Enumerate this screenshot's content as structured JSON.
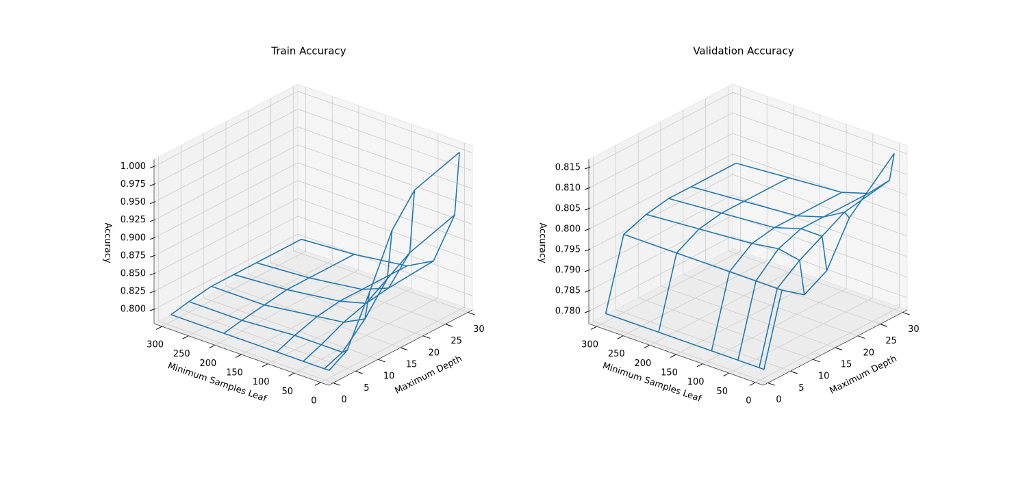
{
  "chart_data": [
    {
      "type": "wireframe",
      "title": "Train Accuracy",
      "xlabel": "Minimum Samples Leaf",
      "ylabel": "Maximum Depth",
      "zlabel": "Accuracy",
      "color": "#1f77b4",
      "x": [
        1,
        10,
        50,
        100,
        200,
        300
      ],
      "y": [
        1,
        5,
        10,
        15,
        20,
        30
      ],
      "z": [
        [
          0.79,
          0.805,
          0.87,
          0.94,
          0.98,
          1.0
        ],
        [
          0.79,
          0.8,
          0.83,
          0.87,
          0.89,
          0.91
        ],
        [
          0.79,
          0.8,
          0.815,
          0.825,
          0.83,
          0.835
        ],
        [
          0.79,
          0.8,
          0.81,
          0.815,
          0.815,
          0.815
        ],
        [
          0.79,
          0.795,
          0.8,
          0.805,
          0.805,
          0.805
        ],
        [
          0.79,
          0.795,
          0.8,
          0.8,
          0.8,
          0.8
        ]
      ],
      "xlim": [
        -15,
        315
      ],
      "ylim": [
        -1,
        31
      ],
      "zlim": [
        0.78,
        1.01
      ],
      "xticks": [
        0,
        50,
        100,
        150,
        200,
        250,
        300
      ],
      "yticks": [
        0,
        5,
        10,
        15,
        20,
        25,
        30
      ],
      "zticks": [
        {
          "value": 0.8,
          "label": "0.800"
        },
        0.825,
        {
          "value": 0.85,
          "label": "0.850"
        },
        0.875,
        {
          "value": 0.9,
          "label": "0.900"
        },
        0.925,
        {
          "value": 0.95,
          "label": "0.950"
        },
        0.975,
        {
          "value": 1.0,
          "label": "1.000"
        }
      ],
      "grid": true
    },
    {
      "type": "wireframe",
      "title": "Validation Accuracy",
      "xlabel": "Minimum Samples Leaf",
      "ylabel": "Maximum Depth",
      "zlabel": "Accuracy",
      "color": "#1f77b4",
      "x": [
        1,
        10,
        50,
        100,
        200,
        300
      ],
      "y": [
        1,
        5,
        10,
        15,
        20,
        30
      ],
      "z": [
        [
          0.779,
          0.796,
          0.792,
          0.795,
          0.805,
          0.815
        ],
        [
          0.779,
          0.796,
          0.8,
          0.803,
          0.806,
          0.808
        ],
        [
          0.779,
          0.796,
          0.801,
          0.803,
          0.803,
          0.803
        ],
        [
          0.779,
          0.796,
          0.8,
          0.801,
          0.801,
          0.801
        ],
        [
          0.779,
          0.796,
          0.799,
          0.8,
          0.8,
          0.8
        ],
        [
          0.779,
          0.796,
          0.798,
          0.799,
          0.799,
          0.799
        ]
      ],
      "xlim": [
        -15,
        315
      ],
      "ylim": [
        -1,
        31
      ],
      "zlim": [
        0.777,
        0.817
      ],
      "xticks": [
        0,
        50,
        100,
        150,
        200,
        250,
        300
      ],
      "yticks": [
        0,
        5,
        10,
        15,
        20,
        25,
        30
      ],
      "zticks": [
        {
          "value": 0.78,
          "label": "0.780"
        },
        0.785,
        {
          "value": 0.79,
          "label": "0.790"
        },
        0.795,
        {
          "value": 0.8,
          "label": "0.800"
        },
        0.805,
        {
          "value": 0.81,
          "label": "0.810"
        },
        0.815
      ],
      "grid": true
    }
  ]
}
